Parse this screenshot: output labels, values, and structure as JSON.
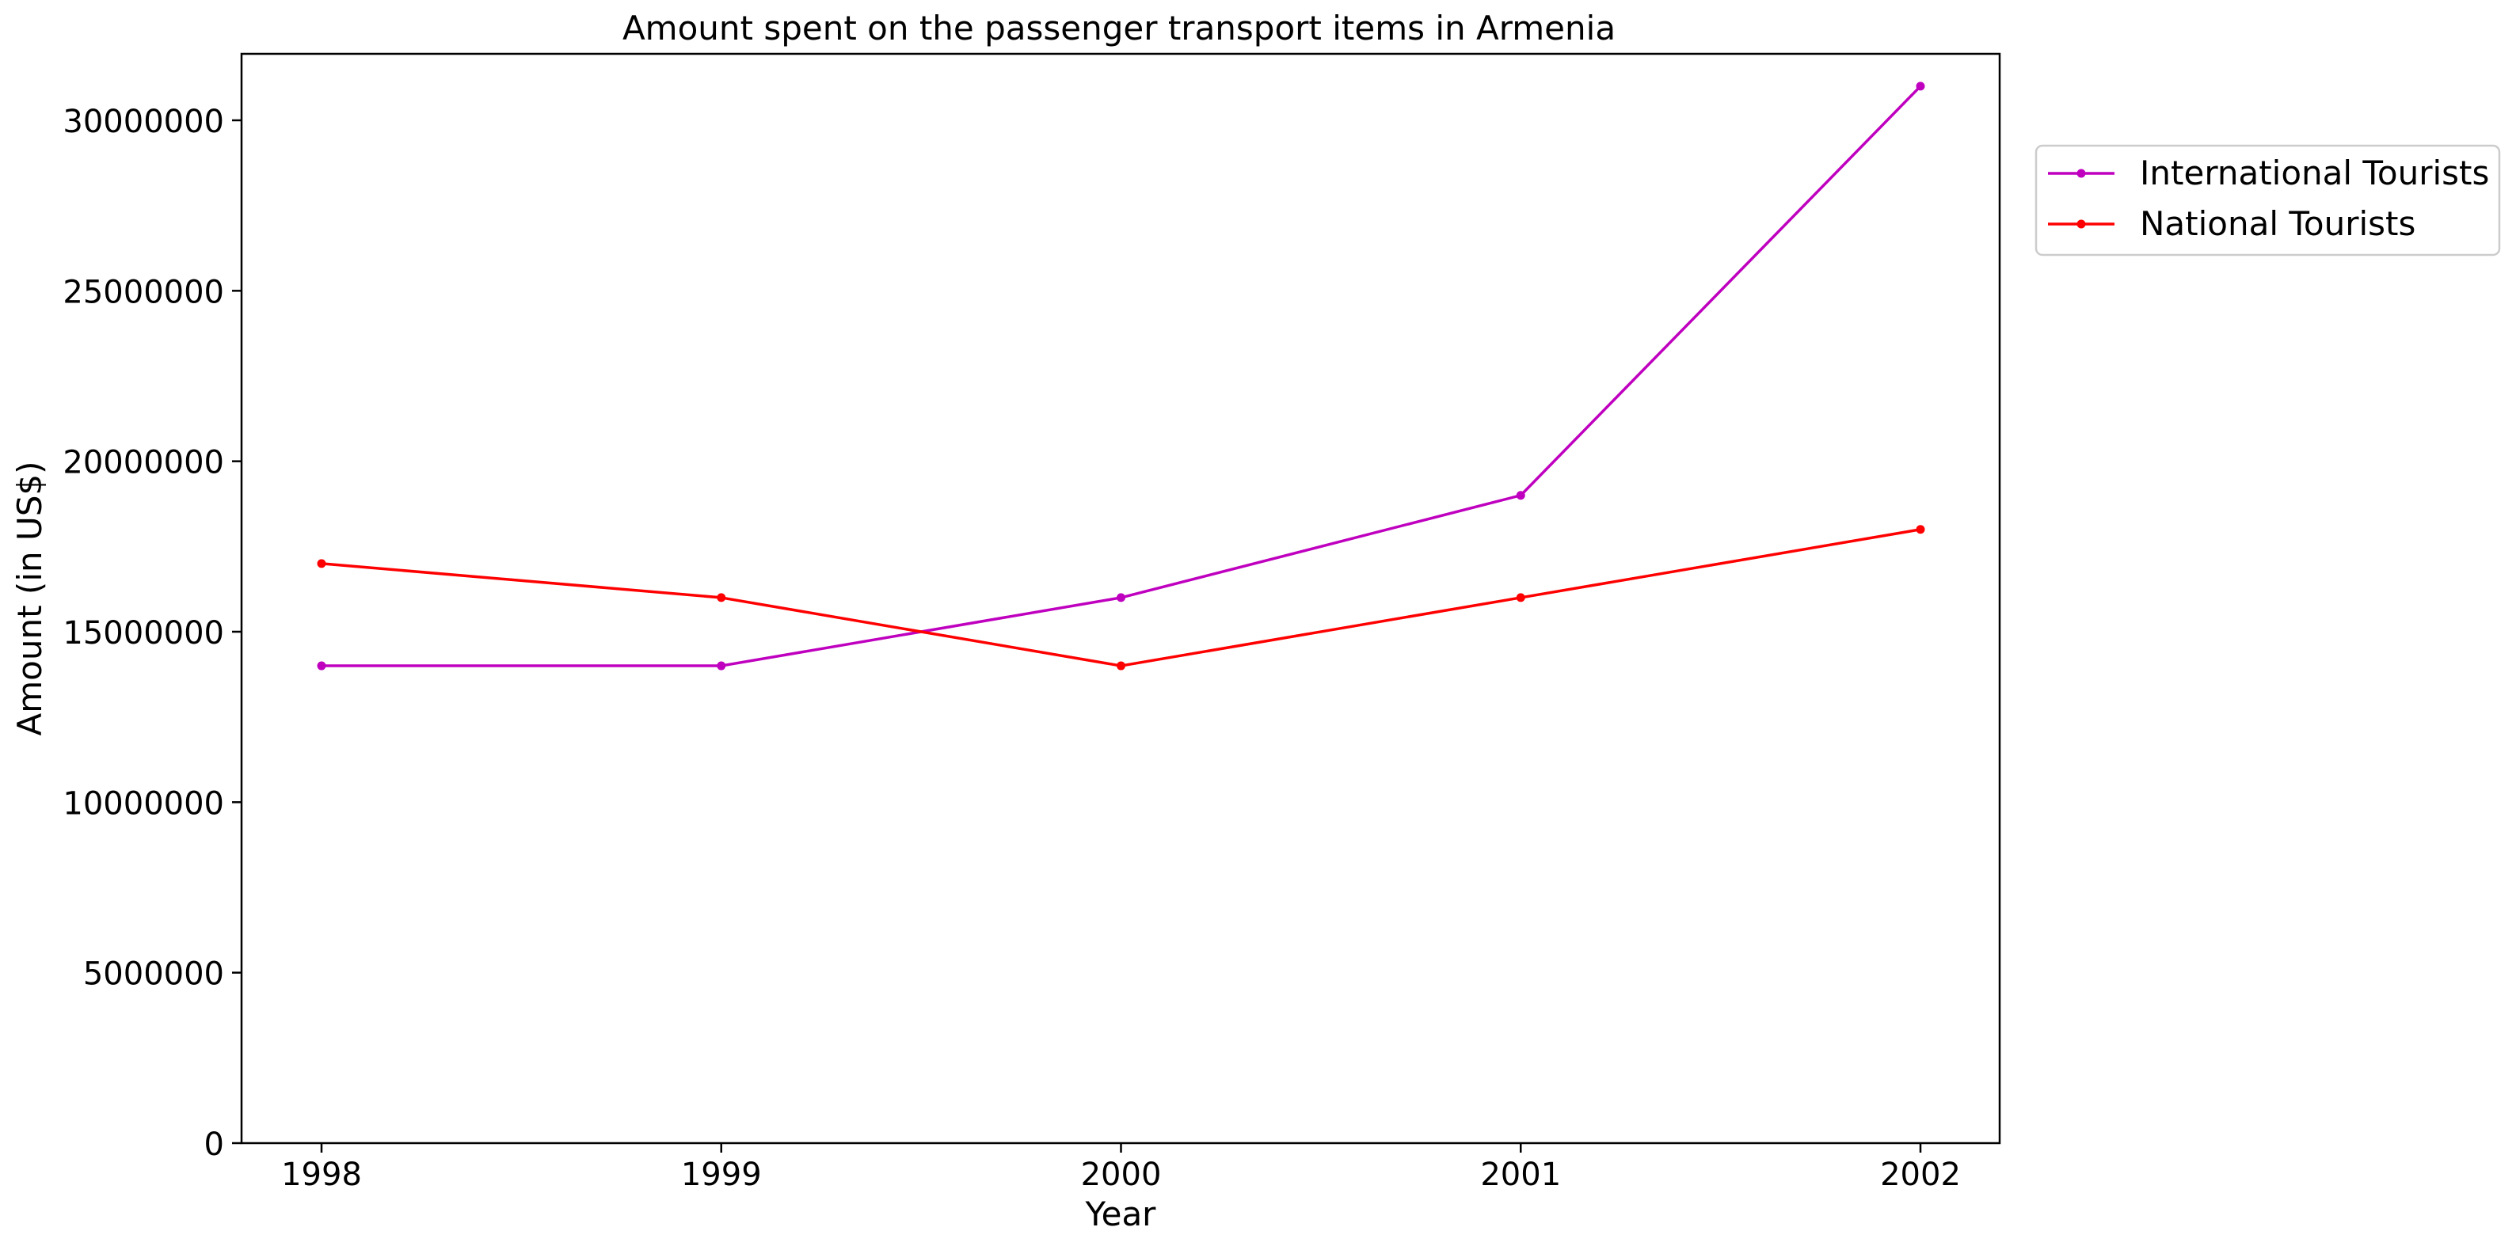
{
  "chart_data": {
    "type": "line",
    "title": "Amount spent on the passenger transport items in Armenia",
    "xlabel": "Year",
    "ylabel": "Amount (in US$)",
    "categories": [
      "1998",
      "1999",
      "2000",
      "2001",
      "2002"
    ],
    "yticks": [
      0,
      5000000,
      10000000,
      15000000,
      20000000,
      25000000,
      30000000
    ],
    "ylim": [
      0,
      31950000
    ],
    "grid": false,
    "legend_position": "outside-top-right",
    "series": [
      {
        "name": "International Tourists",
        "color": "#bf00bf",
        "values": [
          14000000,
          14000000,
          16000000,
          19000000,
          31000000
        ]
      },
      {
        "name": "National Tourists",
        "color": "#ff0000",
        "values": [
          17000000,
          16000000,
          14000000,
          16000000,
          18000000
        ]
      }
    ]
  }
}
